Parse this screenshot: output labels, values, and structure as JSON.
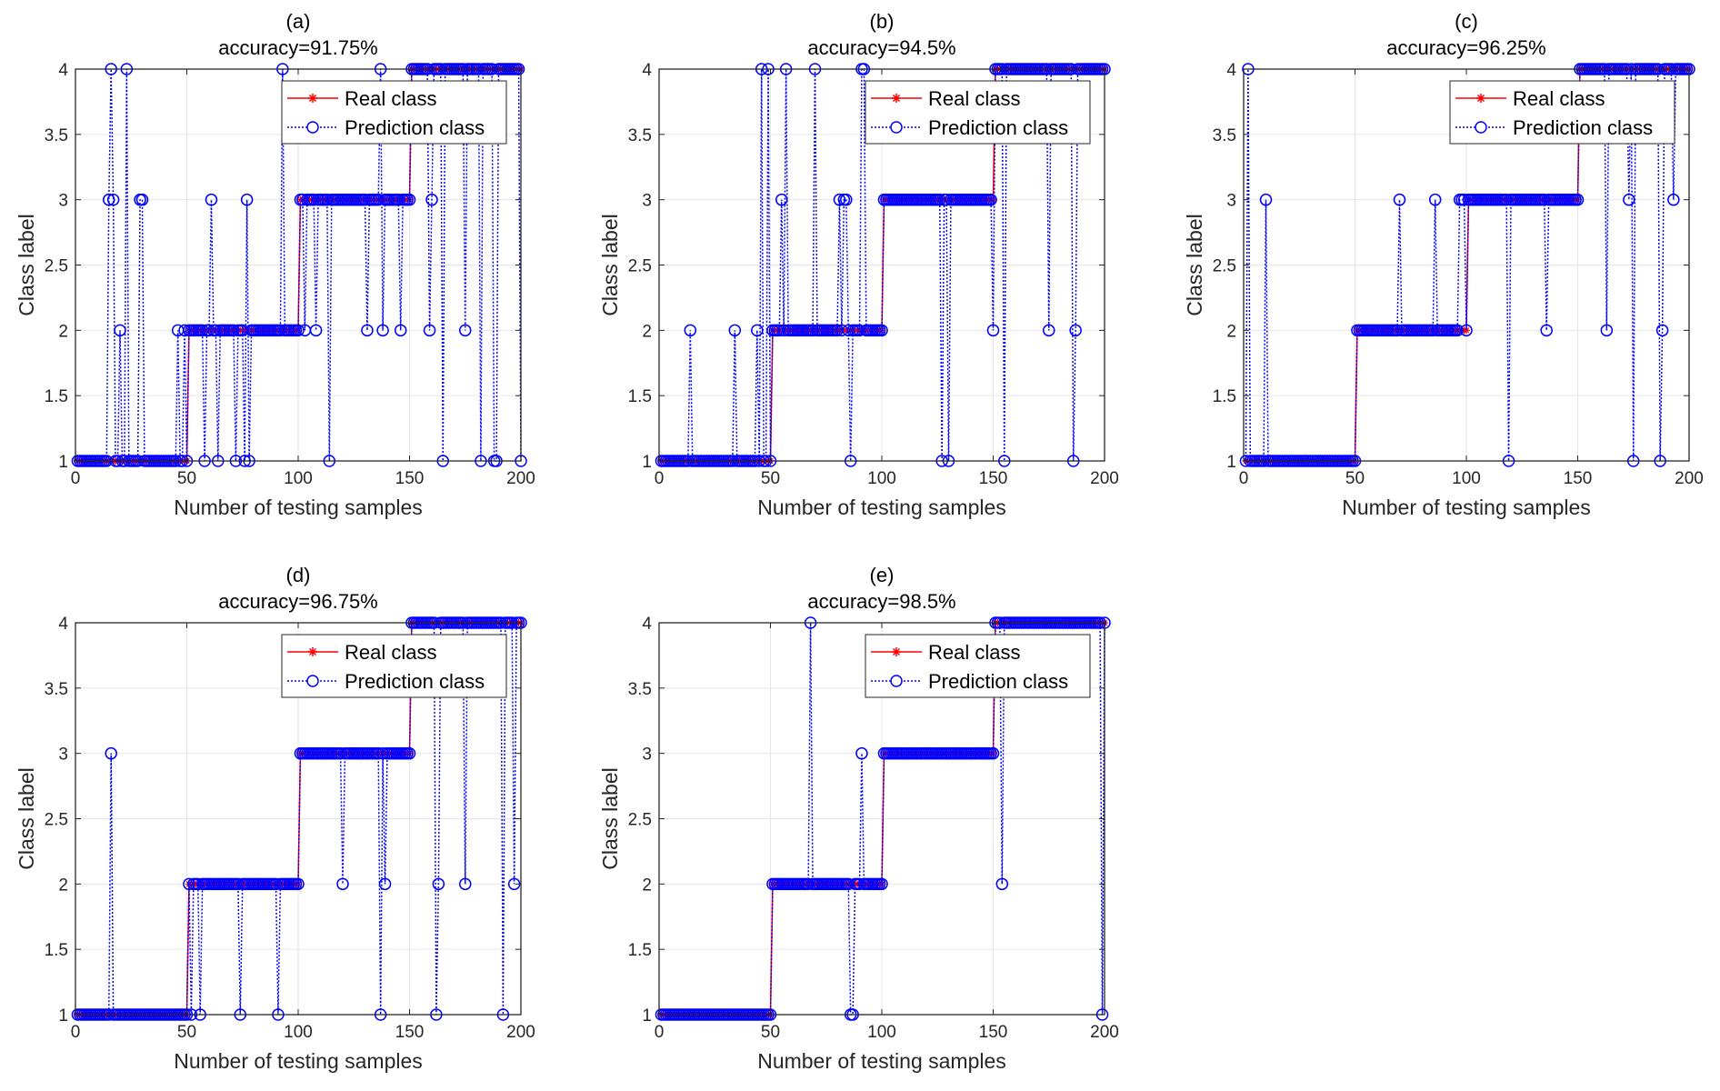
{
  "colors": {
    "real": "#ff0000",
    "prediction": "#0000ff",
    "grid": "#e6e6e6",
    "axes": "#262626"
  },
  "legend": {
    "placement": "top-right",
    "real_label": "Real class",
    "prediction_label": "Prediction class"
  },
  "chart_data": [
    {
      "type": "line",
      "title": "(a)",
      "subtitle": "accuracy=91.75%",
      "xlabel": "Number of testing samples",
      "ylabel": "Class label",
      "xlim": [
        0,
        200
      ],
      "ylim": [
        1,
        4
      ],
      "xticks": [
        "0",
        "50",
        "100",
        "150",
        "200"
      ],
      "yticks": [
        "1",
        "1.5",
        "2",
        "2.5",
        "3",
        "3.5",
        "4"
      ],
      "grid": true,
      "series": [
        {
          "name": "Real class",
          "style": "red solid line, star markers",
          "segments": [
            {
              "from": 1,
              "to": 50,
              "class": 1
            },
            {
              "from": 51,
              "to": 100,
              "class": 2
            },
            {
              "from": 101,
              "to": 150,
              "class": 3
            },
            {
              "from": 151,
              "to": 200,
              "class": 4
            }
          ]
        },
        {
          "name": "Prediction class",
          "style": "blue dotted line, circle markers",
          "note_equal_to_real_except": [
            {
              "x": 15,
              "y": 3
            },
            {
              "x": 16,
              "y": 4
            },
            {
              "x": 17,
              "y": 3
            },
            {
              "x": 20,
              "y": 2
            },
            {
              "x": 23,
              "y": 4
            },
            {
              "x": 29,
              "y": 3
            },
            {
              "x": 30,
              "y": 3
            },
            {
              "x": 46,
              "y": 2
            },
            {
              "x": 49,
              "y": 2
            },
            {
              "x": 58,
              "y": 1
            },
            {
              "x": 61,
              "y": 3
            },
            {
              "x": 64,
              "y": 1
            },
            {
              "x": 72,
              "y": 1
            },
            {
              "x": 76,
              "y": 1
            },
            {
              "x": 77,
              "y": 3
            },
            {
              "x": 78,
              "y": 1
            },
            {
              "x": 93,
              "y": 4
            },
            {
              "x": 103,
              "y": 2
            },
            {
              "x": 108,
              "y": 2
            },
            {
              "x": 114,
              "y": 1
            },
            {
              "x": 131,
              "y": 2
            },
            {
              "x": 137,
              "y": 4
            },
            {
              "x": 138,
              "y": 2
            },
            {
              "x": 146,
              "y": 2
            },
            {
              "x": 159,
              "y": 2
            },
            {
              "x": 160,
              "y": 3
            },
            {
              "x": 165,
              "y": 1
            },
            {
              "x": 175,
              "y": 2
            },
            {
              "x": 182,
              "y": 1
            },
            {
              "x": 188,
              "y": 1
            },
            {
              "x": 189,
              "y": 1
            },
            {
              "x": 200,
              "y": 1
            }
          ]
        }
      ]
    },
    {
      "type": "line",
      "title": "(b)",
      "subtitle": "accuracy=94.5%",
      "xlabel": "Number of testing samples",
      "ylabel": "Class label",
      "xlim": [
        0,
        200
      ],
      "ylim": [
        1,
        4
      ],
      "xticks": [
        "0",
        "50",
        "100",
        "150",
        "200"
      ],
      "yticks": [
        "1",
        "1.5",
        "2",
        "2.5",
        "3",
        "3.5",
        "4"
      ],
      "grid": true,
      "series": [
        {
          "name": "Real class",
          "style": "red solid line, star markers",
          "segments": [
            {
              "from": 1,
              "to": 50,
              "class": 1
            },
            {
              "from": 51,
              "to": 100,
              "class": 2
            },
            {
              "from": 101,
              "to": 150,
              "class": 3
            },
            {
              "from": 151,
              "to": 200,
              "class": 4
            }
          ]
        },
        {
          "name": "Prediction class",
          "style": "blue dotted line, circle markers",
          "note_equal_to_real_except": [
            {
              "x": 14,
              "y": 2
            },
            {
              "x": 34,
              "y": 2
            },
            {
              "x": 44,
              "y": 2
            },
            {
              "x": 46,
              "y": 4
            },
            {
              "x": 49,
              "y": 4
            },
            {
              "x": 55,
              "y": 3
            },
            {
              "x": 57,
              "y": 4
            },
            {
              "x": 70,
              "y": 4
            },
            {
              "x": 81,
              "y": 3
            },
            {
              "x": 83,
              "y": 3
            },
            {
              "x": 84,
              "y": 3
            },
            {
              "x": 86,
              "y": 1
            },
            {
              "x": 91,
              "y": 4
            },
            {
              "x": 92,
              "y": 4
            },
            {
              "x": 127,
              "y": 1
            },
            {
              "x": 130,
              "y": 1
            },
            {
              "x": 150,
              "y": 2
            },
            {
              "x": 155,
              "y": 1
            },
            {
              "x": 175,
              "y": 2
            },
            {
              "x": 186,
              "y": 1
            },
            {
              "x": 187,
              "y": 2
            }
          ]
        }
      ]
    },
    {
      "type": "line",
      "title": "(c)",
      "subtitle": "accuracy=96.25%",
      "xlabel": "Number of testing samples",
      "ylabel": "Class label",
      "xlim": [
        0,
        200
      ],
      "ylim": [
        1,
        4
      ],
      "xticks": [
        "0",
        "50",
        "100",
        "150",
        "200"
      ],
      "yticks": [
        "1",
        "1.5",
        "2",
        "2.5",
        "3",
        "3.5",
        "4"
      ],
      "grid": true,
      "series": [
        {
          "name": "Real class",
          "style": "red solid line, star markers",
          "segments": [
            {
              "from": 1,
              "to": 50,
              "class": 1
            },
            {
              "from": 51,
              "to": 100,
              "class": 2
            },
            {
              "from": 101,
              "to": 150,
              "class": 3
            },
            {
              "from": 151,
              "to": 200,
              "class": 4
            }
          ]
        },
        {
          "name": "Prediction class",
          "style": "blue dotted line, circle markers",
          "note_equal_to_real_except": [
            {
              "x": 2,
              "y": 4
            },
            {
              "x": 10,
              "y": 3
            },
            {
              "x": 70,
              "y": 3
            },
            {
              "x": 86,
              "y": 3
            },
            {
              "x": 97,
              "y": 3
            },
            {
              "x": 98,
              "y": 3
            },
            {
              "x": 99,
              "y": 3
            },
            {
              "x": 119,
              "y": 1
            },
            {
              "x": 136,
              "y": 2
            },
            {
              "x": 163,
              "y": 2
            },
            {
              "x": 173,
              "y": 3
            },
            {
              "x": 175,
              "y": 1
            },
            {
              "x": 187,
              "y": 1
            },
            {
              "x": 188,
              "y": 2
            },
            {
              "x": 193,
              "y": 3
            }
          ]
        }
      ]
    },
    {
      "type": "line",
      "title": "(d)",
      "subtitle": "accuracy=96.75%",
      "xlabel": "Number of testing samples",
      "ylabel": "Class label",
      "xlim": [
        0,
        200
      ],
      "ylim": [
        1,
        4
      ],
      "xticks": [
        "0",
        "50",
        "100",
        "150",
        "200"
      ],
      "yticks": [
        "1",
        "1.5",
        "2",
        "2.5",
        "3",
        "3.5",
        "4"
      ],
      "grid": true,
      "series": [
        {
          "name": "Real class",
          "style": "red solid line, star markers",
          "segments": [
            {
              "from": 1,
              "to": 50,
              "class": 1
            },
            {
              "from": 51,
              "to": 100,
              "class": 2
            },
            {
              "from": 101,
              "to": 150,
              "class": 3
            },
            {
              "from": 151,
              "to": 200,
              "class": 4
            }
          ]
        },
        {
          "name": "Prediction class",
          "style": "blue dotted line, circle markers",
          "note_equal_to_real_except": [
            {
              "x": 16,
              "y": 3
            },
            {
              "x": 52,
              "y": 1
            },
            {
              "x": 56,
              "y": 1
            },
            {
              "x": 74,
              "y": 1
            },
            {
              "x": 91,
              "y": 1
            },
            {
              "x": 120,
              "y": 2
            },
            {
              "x": 137,
              "y": 1
            },
            {
              "x": 139,
              "y": 2
            },
            {
              "x": 162,
              "y": 1
            },
            {
              "x": 163,
              "y": 2
            },
            {
              "x": 175,
              "y": 2
            },
            {
              "x": 192,
              "y": 1
            },
            {
              "x": 197,
              "y": 2
            }
          ]
        }
      ]
    },
    {
      "type": "line",
      "title": "(e)",
      "subtitle": "accuracy=98.5%",
      "xlabel": "Number of testing samples",
      "ylabel": "Class label",
      "xlim": [
        0,
        200
      ],
      "ylim": [
        1,
        4
      ],
      "xticks": [
        "0",
        "50",
        "100",
        "150",
        "200"
      ],
      "yticks": [
        "1",
        "1.5",
        "2",
        "2.5",
        "3",
        "3.5",
        "4"
      ],
      "grid": true,
      "series": [
        {
          "name": "Real class",
          "style": "red solid line, star markers",
          "segments": [
            {
              "from": 1,
              "to": 50,
              "class": 1
            },
            {
              "from": 51,
              "to": 100,
              "class": 2
            },
            {
              "from": 101,
              "to": 150,
              "class": 3
            },
            {
              "from": 151,
              "to": 200,
              "class": 4
            }
          ]
        },
        {
          "name": "Prediction class",
          "style": "blue dotted line, circle markers",
          "note_equal_to_real_except": [
            {
              "x": 68,
              "y": 4
            },
            {
              "x": 86,
              "y": 1
            },
            {
              "x": 87,
              "y": 1
            },
            {
              "x": 91,
              "y": 3
            },
            {
              "x": 154,
              "y": 2
            },
            {
              "x": 199,
              "y": 1
            }
          ]
        }
      ]
    }
  ]
}
